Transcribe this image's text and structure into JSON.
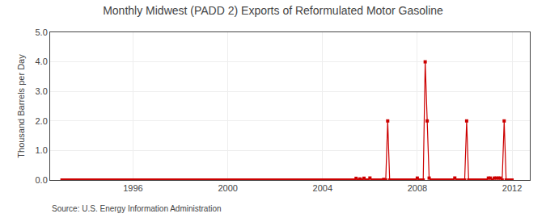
{
  "chart_data": {
    "type": "line",
    "title": "Monthly Midwest (PADD 2) Exports of Reformulated Motor Gasoline",
    "y_label": "Thousand Barrels per Day",
    "annotations": [
      "Source: U.S. Energy Information Administration"
    ],
    "color": "#cc0000",
    "marker": "square",
    "line_style": "solid",
    "grid": true,
    "xlim": [
      1992.5,
      2012.75
    ],
    "ylim": [
      0.0,
      5.0
    ],
    "xticks": [
      1996,
      2000,
      2004,
      2008,
      2012
    ],
    "yticks": [
      {
        "value": 0.0,
        "label": "0.0"
      },
      {
        "value": 1.0,
        "label": "1.0"
      },
      {
        "value": 2.0,
        "label": "2.0"
      },
      {
        "value": 3.0,
        "label": "3.0"
      },
      {
        "value": 4.0,
        "label": "4.0"
      },
      {
        "value": 5.0,
        "label": "5.0"
      }
    ],
    "x": [
      1993.0,
      1993.083,
      1993.167,
      1993.25,
      1993.333,
      1993.417,
      1993.5,
      1993.583,
      1993.667,
      1993.75,
      1993.833,
      1993.917,
      1994.0,
      1994.083,
      1994.167,
      1994.25,
      1994.333,
      1994.417,
      1994.5,
      1994.583,
      1994.667,
      1994.75,
      1994.833,
      1994.917,
      1995.0,
      1995.083,
      1995.167,
      1995.25,
      1995.333,
      1995.417,
      1995.5,
      1995.583,
      1995.667,
      1995.75,
      1995.833,
      1995.917,
      1996.0,
      1996.083,
      1996.167,
      1996.25,
      1996.333,
      1996.417,
      1996.5,
      1996.583,
      1996.667,
      1996.75,
      1996.833,
      1996.917,
      1997.0,
      1997.083,
      1997.167,
      1997.25,
      1997.333,
      1997.417,
      1997.5,
      1997.583,
      1997.667,
      1997.75,
      1997.833,
      1997.917,
      1998.0,
      1998.083,
      1998.167,
      1998.25,
      1998.333,
      1998.417,
      1998.5,
      1998.583,
      1998.667,
      1998.75,
      1998.833,
      1998.917,
      1999.0,
      1999.083,
      1999.167,
      1999.25,
      1999.333,
      1999.417,
      1999.5,
      1999.583,
      1999.667,
      1999.75,
      1999.833,
      1999.917,
      2000.0,
      2000.083,
      2000.167,
      2000.25,
      2000.333,
      2000.417,
      2000.5,
      2000.583,
      2000.667,
      2000.75,
      2000.833,
      2000.917,
      2001.0,
      2001.083,
      2001.167,
      2001.25,
      2001.333,
      2001.417,
      2001.5,
      2001.583,
      2001.667,
      2001.75,
      2001.833,
      2001.917,
      2002.0,
      2002.083,
      2002.167,
      2002.25,
      2002.333,
      2002.417,
      2002.5,
      2002.583,
      2002.667,
      2002.75,
      2002.833,
      2002.917,
      2003.0,
      2003.083,
      2003.167,
      2003.25,
      2003.333,
      2003.417,
      2003.5,
      2003.583,
      2003.667,
      2003.75,
      2003.833,
      2003.917,
      2004.0,
      2004.083,
      2004.167,
      2004.25,
      2004.333,
      2004.417,
      2004.5,
      2004.583,
      2004.667,
      2004.75,
      2004.833,
      2004.917,
      2005.0,
      2005.083,
      2005.167,
      2005.25,
      2005.333,
      2005.417,
      2005.5,
      2005.583,
      2005.667,
      2005.75,
      2005.833,
      2005.917,
      2006.0,
      2006.083,
      2006.167,
      2006.25,
      2006.333,
      2006.417,
      2006.5,
      2006.583,
      2006.667,
      2006.75,
      2006.833,
      2006.917,
      2007.0,
      2007.083,
      2007.167,
      2007.25,
      2007.333,
      2007.417,
      2007.5,
      2007.583,
      2007.667,
      2007.75,
      2007.833,
      2007.917,
      2008.0,
      2008.083,
      2008.167,
      2008.25,
      2008.333,
      2008.417,
      2008.5,
      2008.583,
      2008.667,
      2008.75,
      2008.833,
      2008.917,
      2009.0,
      2009.083,
      2009.167,
      2009.25,
      2009.333,
      2009.417,
      2009.5,
      2009.583,
      2009.667,
      2009.75,
      2009.833,
      2009.917,
      2010.0,
      2010.083,
      2010.167,
      2010.25,
      2010.333,
      2010.417,
      2010.5,
      2010.583,
      2010.667,
      2010.75,
      2010.833,
      2010.917,
      2011.0,
      2011.083,
      2011.167,
      2011.25,
      2011.333,
      2011.417,
      2011.5,
      2011.583,
      2011.667,
      2011.75,
      2011.833,
      2011.917,
      2012.0
    ],
    "values": [
      0.0,
      0.0,
      0.0,
      0.0,
      0.0,
      0.0,
      0.0,
      0.0,
      0.0,
      0.0,
      0.0,
      0.0,
      0.0,
      0.0,
      0.0,
      0.0,
      0.0,
      0.0,
      0.0,
      0.0,
      0.0,
      0.0,
      0.0,
      0.0,
      0.0,
      0.0,
      0.0,
      0.0,
      0.0,
      0.0,
      0.0,
      0.0,
      0.0,
      0.0,
      0.0,
      0.0,
      0.0,
      0.0,
      0.0,
      0.0,
      0.0,
      0.0,
      0.0,
      0.0,
      0.0,
      0.0,
      0.0,
      0.0,
      0.0,
      0.0,
      0.0,
      0.0,
      0.0,
      0.0,
      0.0,
      0.0,
      0.0,
      0.0,
      0.0,
      0.0,
      0.0,
      0.0,
      0.0,
      0.0,
      0.0,
      0.0,
      0.0,
      0.0,
      0.0,
      0.0,
      0.0,
      0.0,
      0.0,
      0.0,
      0.0,
      0.0,
      0.0,
      0.0,
      0.0,
      0.0,
      0.0,
      0.0,
      0.0,
      0.0,
      0.0,
      0.0,
      0.0,
      0.0,
      0.0,
      0.0,
      0.0,
      0.0,
      0.0,
      0.0,
      0.0,
      0.0,
      0.0,
      0.0,
      0.0,
      0.0,
      0.0,
      0.0,
      0.0,
      0.0,
      0.0,
      0.0,
      0.0,
      0.0,
      0.0,
      0.0,
      0.0,
      0.0,
      0.0,
      0.0,
      0.0,
      0.0,
      0.0,
      0.0,
      0.0,
      0.0,
      0.0,
      0.0,
      0.0,
      0.0,
      0.0,
      0.0,
      0.0,
      0.0,
      0.0,
      0.0,
      0.0,
      0.0,
      0.0,
      0.0,
      0.0,
      0.0,
      0.0,
      0.0,
      0.0,
      0.0,
      0.0,
      0.0,
      0.0,
      0.0,
      0.0,
      0.0,
      0.0,
      0.0,
      0.0,
      0.058,
      0.0,
      0.037,
      0.0,
      0.061,
      0.0,
      0.0,
      0.068,
      0.0,
      0.0,
      0.0,
      0.0,
      0.0,
      0.0,
      0.022,
      0.0,
      2.0,
      0.0,
      0.0,
      0.0,
      0.0,
      0.0,
      0.0,
      0.0,
      0.0,
      0.0,
      0.0,
      0.0,
      0.0,
      0.0,
      0.0,
      0.065,
      0.0,
      0.0,
      0.0,
      4.0,
      2.0,
      0.065,
      0.0,
      0.0,
      0.0,
      0.0,
      0.0,
      0.0,
      0.0,
      0.0,
      0.0,
      0.0,
      0.0,
      0.0,
      0.068,
      0.0,
      0.0,
      0.0,
      0.0,
      0.0,
      2.0,
      0.0,
      0.0,
      0.0,
      0.0,
      0.0,
      0.0,
      0.0,
      0.0,
      0.0,
      0.0,
      0.065,
      0.065,
      0.0,
      0.065,
      0.065,
      0.065,
      0.065,
      0.0,
      2.0,
      0.0,
      0.0,
      0.0,
      0.0
    ]
  }
}
